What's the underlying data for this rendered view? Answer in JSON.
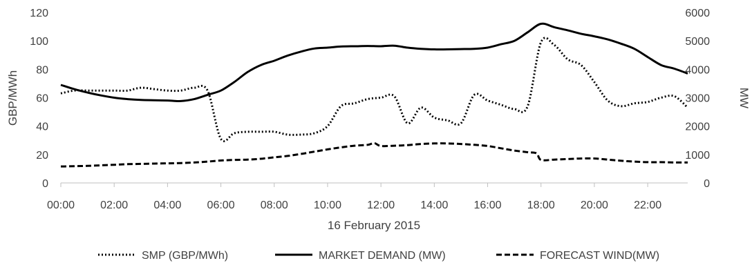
{
  "chart_data": {
    "type": "line",
    "title": "",
    "xlabel": "16 February 2015",
    "ylabel_left": "GBP/MWh",
    "ylabel_right": "MW",
    "x_ticks": [
      "00:00",
      "02:00",
      "04:00",
      "06:00",
      "08:00",
      "10:00",
      "12:00",
      "14:00",
      "16:00",
      "18:00",
      "20:00",
      "22:00"
    ],
    "ylim_left": [
      0,
      120
    ],
    "yticks_left": [
      "0",
      "20",
      "40",
      "60",
      "80",
      "100",
      "120"
    ],
    "ylim_right": [
      0,
      6000
    ],
    "yticks_right": [
      "0",
      "1000",
      "2000",
      "3000",
      "4000",
      "5000",
      "6000"
    ],
    "grid": false,
    "legend_position": "bottom",
    "series": [
      {
        "name": "SMP (GBP/MWh)",
        "axis": "left",
        "style": "dotted",
        "color": "#000000",
        "x": [
          "00:00",
          "00:30",
          "01:00",
          "01:30",
          "02:00",
          "02:30",
          "03:00",
          "03:30",
          "04:00",
          "04:30",
          "05:00",
          "05:30",
          "06:00",
          "06:30",
          "07:00",
          "07:30",
          "08:00",
          "08:30",
          "09:00",
          "09:30",
          "10:00",
          "10:30",
          "11:00",
          "11:30",
          "12:00",
          "12:30",
          "13:00",
          "13:30",
          "14:00",
          "14:30",
          "15:00",
          "15:30",
          "16:00",
          "16:30",
          "17:00",
          "17:30",
          "18:00",
          "18:30",
          "19:00",
          "19:30",
          "20:00",
          "20:30",
          "21:00",
          "21:30",
          "22:00",
          "22:30",
          "23:00",
          "23:30"
        ],
        "values": [
          63,
          65,
          65,
          65,
          65,
          65,
          67,
          66,
          65,
          65,
          67,
          65,
          31,
          35,
          36,
          36,
          36,
          34,
          34,
          35,
          40,
          54,
          56,
          59,
          60,
          61,
          42,
          53,
          46,
          44,
          42,
          62,
          58,
          55,
          52,
          54,
          99,
          97,
          87,
          83,
          71,
          58,
          54,
          56,
          57,
          60,
          61,
          53
        ]
      },
      {
        "name": "MARKET DEMAND (MW)",
        "axis": "right",
        "style": "solid",
        "color": "#000000",
        "x": [
          "00:00",
          "00:30",
          "01:00",
          "01:30",
          "02:00",
          "02:30",
          "03:00",
          "03:30",
          "04:00",
          "04:30",
          "05:00",
          "05:30",
          "06:00",
          "06:30",
          "07:00",
          "07:30",
          "08:00",
          "08:30",
          "09:00",
          "09:30",
          "10:00",
          "10:30",
          "11:00",
          "11:30",
          "12:00",
          "12:30",
          "13:00",
          "13:30",
          "14:00",
          "14:30",
          "15:00",
          "15:30",
          "16:00",
          "16:30",
          "17:00",
          "17:30",
          "18:00",
          "18:30",
          "19:00",
          "19:30",
          "20:00",
          "20:30",
          "21:00",
          "21:30",
          "22:00",
          "22:30",
          "23:00",
          "23:30"
        ],
        "values": [
          3450,
          3300,
          3180,
          3080,
          3000,
          2950,
          2920,
          2910,
          2900,
          2880,
          2950,
          3100,
          3250,
          3550,
          3900,
          4150,
          4300,
          4480,
          4620,
          4730,
          4760,
          4800,
          4810,
          4820,
          4810,
          4830,
          4760,
          4720,
          4700,
          4700,
          4710,
          4720,
          4760,
          4880,
          5000,
          5300,
          5600,
          5480,
          5370,
          5250,
          5160,
          5050,
          4900,
          4720,
          4430,
          4150,
          4020,
          3850
        ]
      },
      {
        "name": "FORECAST WIND(MW)",
        "axis": "right",
        "style": "dashed",
        "color": "#000000",
        "x": [
          "00:00",
          "00:30",
          "01:00",
          "01:30",
          "02:00",
          "02:30",
          "03:00",
          "03:30",
          "04:00",
          "04:30",
          "05:00",
          "05:30",
          "06:00",
          "06:30",
          "07:00",
          "07:30",
          "08:00",
          "08:30",
          "09:00",
          "09:30",
          "10:00",
          "10:30",
          "11:00",
          "11:30",
          "11:45",
          "12:00",
          "12:30",
          "13:00",
          "13:30",
          "14:00",
          "14:30",
          "15:00",
          "15:30",
          "16:00",
          "16:30",
          "17:00",
          "17:30",
          "17:50",
          "18:00",
          "18:30",
          "19:00",
          "19:30",
          "20:00",
          "20:30",
          "21:00",
          "21:30",
          "22:00",
          "22:30",
          "23:00",
          "23:30"
        ],
        "values": [
          580,
          590,
          600,
          620,
          640,
          660,
          670,
          680,
          690,
          700,
          720,
          750,
          790,
          810,
          820,
          850,
          900,
          950,
          1020,
          1100,
          1180,
          1250,
          1310,
          1340,
          1400,
          1300,
          1310,
          1330,
          1370,
          1390,
          1390,
          1370,
          1340,
          1300,
          1220,
          1140,
          1080,
          1040,
          810,
          820,
          840,
          860,
          860,
          820,
          780,
          750,
          730,
          730,
          720,
          720
        ]
      }
    ]
  }
}
